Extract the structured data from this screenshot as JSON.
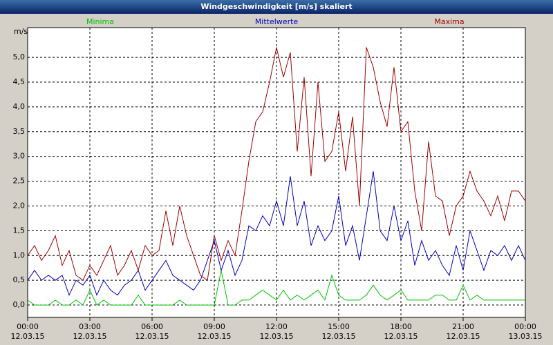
{
  "chart_data": {
    "type": "line",
    "title": "Windgeschwindigkeit [m/s] skaliert",
    "y_label": "m/s",
    "grid": true,
    "xlim": [
      0,
      1440
    ],
    "ylim": [
      -0.25,
      5.6
    ],
    "xticks": [
      {
        "value": 0,
        "label": "00:00 12.03.15"
      },
      {
        "value": 180,
        "label": "03:00 12.03.15"
      },
      {
        "value": 360,
        "label": "06:00 12.03.15"
      },
      {
        "value": 540,
        "label": "09:00 12.03.15"
      },
      {
        "value": 720,
        "label": "12:00 12.03.15"
      },
      {
        "value": 900,
        "label": "15:00 12.03.15"
      },
      {
        "value": 1080,
        "label": "18:00 12.03.15"
      },
      {
        "value": 1260,
        "label": "21:00 12.03.15"
      },
      {
        "value": 1440,
        "label": "00:00 13.03.15"
      }
    ],
    "yticks": [
      {
        "value": 0,
        "label": "0,0"
      },
      {
        "value": 0.5,
        "label": "0,5"
      },
      {
        "value": 1,
        "label": "1,0"
      },
      {
        "value": 1.5,
        "label": "1,5"
      },
      {
        "value": 2,
        "label": "2,0"
      },
      {
        "value": 2.5,
        "label": "2,5"
      },
      {
        "value": 3,
        "label": "3,0"
      },
      {
        "value": 3.5,
        "label": "3,5"
      },
      {
        "value": 4,
        "label": "4,0"
      },
      {
        "value": 4.5,
        "label": "4,5"
      },
      {
        "value": 5,
        "label": "5,0"
      }
    ],
    "x": [
      0,
      20,
      40,
      60,
      80,
      100,
      120,
      140,
      160,
      180,
      200,
      220,
      240,
      260,
      280,
      300,
      320,
      340,
      360,
      380,
      400,
      420,
      440,
      460,
      480,
      500,
      520,
      540,
      560,
      580,
      600,
      620,
      640,
      660,
      680,
      700,
      720,
      740,
      760,
      780,
      800,
      820,
      840,
      860,
      880,
      900,
      920,
      940,
      960,
      980,
      1000,
      1020,
      1040,
      1060,
      1080,
      1100,
      1120,
      1140,
      1160,
      1180,
      1200,
      1220,
      1240,
      1260,
      1280,
      1300,
      1320,
      1340,
      1360,
      1380,
      1400,
      1420,
      1440
    ],
    "series": [
      {
        "name": "Minima",
        "color": "#00c000",
        "values": [
          0.1,
          0.0,
          0.0,
          0.0,
          0.1,
          0.0,
          0.0,
          0.1,
          0.0,
          0.3,
          0.0,
          0.1,
          0.0,
          0.0,
          0.0,
          0.0,
          0.2,
          0.0,
          0.0,
          0.0,
          0.0,
          0.0,
          0.1,
          0.0,
          0.0,
          0.0,
          0.0,
          0.0,
          0.7,
          0.0,
          0.0,
          0.1,
          0.1,
          0.2,
          0.3,
          0.2,
          0.1,
          0.3,
          0.1,
          0.2,
          0.1,
          0.2,
          0.3,
          0.1,
          0.6,
          0.2,
          0.1,
          0.1,
          0.1,
          0.2,
          0.4,
          0.2,
          0.1,
          0.2,
          0.3,
          0.1,
          0.1,
          0.1,
          0.1,
          0.2,
          0.2,
          0.1,
          0.1,
          0.4,
          0.1,
          0.2,
          0.1,
          0.1,
          0.1,
          0.1,
          0.1,
          0.1,
          0.1
        ]
      },
      {
        "name": "Mittelwerte",
        "color": "#0000c0",
        "values": [
          0.5,
          0.7,
          0.5,
          0.6,
          0.5,
          0.6,
          0.2,
          0.5,
          0.4,
          0.6,
          0.2,
          0.5,
          0.3,
          0.2,
          0.4,
          0.5,
          0.7,
          0.3,
          0.5,
          0.7,
          0.9,
          0.6,
          0.5,
          0.4,
          0.3,
          0.5,
          0.9,
          1.3,
          0.7,
          1.1,
          0.6,
          0.9,
          1.6,
          1.5,
          1.8,
          1.6,
          2.1,
          1.6,
          2.6,
          1.6,
          2.1,
          1.2,
          1.6,
          1.3,
          1.5,
          2.2,
          1.2,
          1.6,
          0.9,
          1.8,
          2.7,
          1.5,
          1.3,
          2.0,
          1.3,
          1.7,
          0.8,
          1.3,
          0.9,
          1.1,
          0.8,
          0.6,
          1.2,
          0.7,
          1.5,
          1.1,
          0.7,
          1.1,
          1.0,
          1.2,
          0.9,
          1.2,
          0.9
        ]
      },
      {
        "name": "Maxima",
        "color": "#a00000",
        "values": [
          1.0,
          1.2,
          0.9,
          1.1,
          1.4,
          0.8,
          1.1,
          0.6,
          0.5,
          0.8,
          0.6,
          0.9,
          1.2,
          0.6,
          0.8,
          1.1,
          0.7,
          1.2,
          1.0,
          1.1,
          1.9,
          1.2,
          2.0,
          1.4,
          1.0,
          0.6,
          0.5,
          1.4,
          0.9,
          1.3,
          1.0,
          1.9,
          2.9,
          3.7,
          3.9,
          4.5,
          5.2,
          4.6,
          5.1,
          3.1,
          4.6,
          2.6,
          4.5,
          2.9,
          3.1,
          3.9,
          2.7,
          3.8,
          2.0,
          5.2,
          4.8,
          4.1,
          3.6,
          4.8,
          3.5,
          3.7,
          2.3,
          1.5,
          3.3,
          2.2,
          2.1,
          1.4,
          2.0,
          2.2,
          2.7,
          2.3,
          2.1,
          1.8,
          2.2,
          1.7,
          2.3,
          2.3,
          2.1
        ]
      }
    ]
  }
}
